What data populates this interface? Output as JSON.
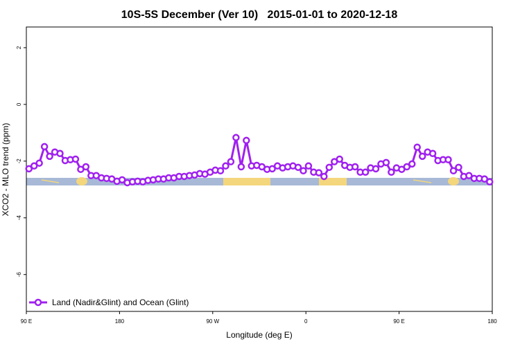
{
  "chart_data": {
    "type": "line",
    "title": "10S-5S December (Ver 10)   2015-01-01 to 2020-12-18",
    "x_label": "Longitude (deg E)",
    "y_label": "XCO2 - MLO trend (ppm)",
    "xlim": [
      90,
      540
    ],
    "xticks": [
      {
        "value": 90,
        "label": "90 E"
      },
      {
        "value": 180,
        "label": "180"
      },
      {
        "value": 270,
        "label": "90 W"
      },
      {
        "value": 360,
        "label": "0"
      },
      {
        "value": 450,
        "label": "90 E"
      },
      {
        "value": 540,
        "label": "180"
      }
    ],
    "ylim": [
      -7.3,
      2.73
    ],
    "yticks": [
      2,
      0,
      -2,
      -4,
      -6
    ],
    "legend": "bottom-left",
    "x": [
      92.5,
      97.5,
      102.5,
      107.5,
      112.5,
      117.5,
      122.5,
      127.5,
      132.5,
      137.5,
      142.5,
      147.5,
      152.5,
      157.5,
      162.5,
      167.5,
      172.5,
      177.5,
      182.5,
      187.5,
      192.5,
      197.5,
      202.5,
      207.5,
      212.5,
      217.5,
      222.5,
      227.5,
      232.5,
      237.5,
      242.5,
      247.5,
      252.5,
      257.5,
      262.5,
      267.5,
      272.5,
      277.5,
      282.5,
      287.5,
      292.5,
      297.5,
      302.5,
      307.5,
      312.5,
      317.5,
      322.5,
      327.5,
      332.5,
      337.5,
      342.5,
      347.5,
      352.5,
      357.5,
      362.5,
      367.5,
      372.5,
      377.5,
      382.5,
      387.5,
      392.5,
      397.5,
      402.5,
      407.5,
      412.5,
      417.5,
      422.5,
      427.5,
      432.5,
      437.5,
      442.5,
      447.5,
      452.5,
      457.5,
      462.5,
      467.5,
      472.5,
      477.5,
      482.5,
      487.5,
      492.5,
      497.5,
      502.5,
      507.5,
      512.5,
      517.5,
      522.5,
      527.5,
      532.5,
      537.5
    ],
    "series": [
      {
        "name": "Land (Nadir&Glint) and Ocean (Glint)",
        "color": "#a020f0",
        "values": [
          -2.27,
          -2.17,
          -2.07,
          -1.49,
          -1.83,
          -1.68,
          -1.73,
          -1.98,
          -1.95,
          -1.93,
          -2.29,
          -2.2,
          -2.51,
          -2.51,
          -2.59,
          -2.61,
          -2.63,
          -2.71,
          -2.66,
          -2.76,
          -2.73,
          -2.71,
          -2.73,
          -2.68,
          -2.66,
          -2.63,
          -2.63,
          -2.59,
          -2.59,
          -2.54,
          -2.54,
          -2.51,
          -2.49,
          -2.44,
          -2.46,
          -2.39,
          -2.32,
          -2.34,
          -2.17,
          -2.02,
          -1.17,
          -2.2,
          -1.27,
          -2.17,
          -2.15,
          -2.2,
          -2.29,
          -2.27,
          -2.17,
          -2.24,
          -2.2,
          -2.17,
          -2.22,
          -2.34,
          -2.17,
          -2.39,
          -2.41,
          -2.54,
          -2.22,
          -2.02,
          -1.93,
          -2.15,
          -2.22,
          -2.2,
          -2.39,
          -2.39,
          -2.24,
          -2.27,
          -2.1,
          -2.05,
          -2.39,
          -2.24,
          -2.29,
          -2.2,
          -2.1,
          -1.51,
          -1.83,
          -1.68,
          -1.73,
          -1.98,
          -1.95,
          -1.95,
          -2.34,
          -2.22,
          -2.54,
          -2.51,
          -2.61,
          -2.61,
          -2.63,
          -2.73
        ]
      }
    ]
  }
}
